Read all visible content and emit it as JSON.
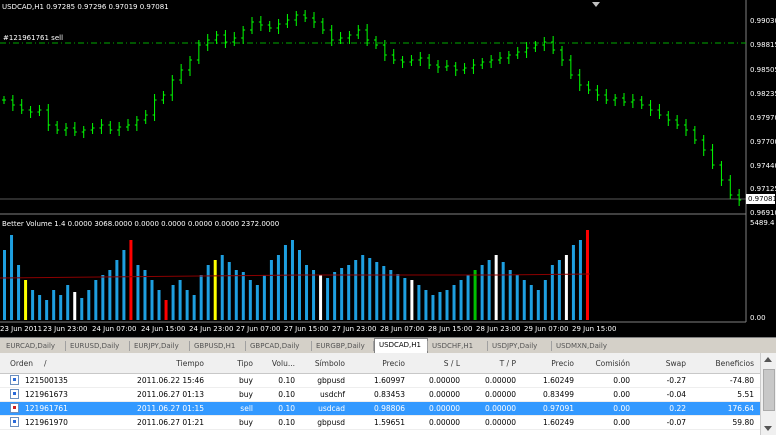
{
  "chart": {
    "symbol_line": "USDCAD,H1  0.97285 0.97296 0.97019 0.97081",
    "order_line_label": "#121961761 sell",
    "indicator_line": "Better Volume 1.4 0.0000 3068.0000 0.0000 0.0000 0.0000 0.0000 2372.0000",
    "current_price": "0.97081",
    "price_scale": [
      "0.99030",
      "0.98815",
      "0.98505",
      "0.98235",
      "0.97970",
      "0.97700",
      "0.97440",
      "0.97125",
      "0.96910"
    ],
    "volume_scale_top": "5489.4",
    "volume_scale_bottom": "0.00",
    "time_labels": [
      "23 Jun 2011",
      "23 Jun 23:00",
      "24 Jun 07:00",
      "24 Jun 15:00",
      "24 Jun 23:00",
      "27 Jun 07:00",
      "27 Jun 15:00",
      "27 Jun 23:00",
      "28 Jun 07:00",
      "28 Jun 15:00",
      "28 Jun 23:00",
      "29 Jun 07:00",
      "29 Jun 15:00"
    ],
    "colors": {
      "bull": "#00ff00",
      "bear": "#00ff00",
      "volume_default": "#1e9fe0",
      "volume_red": "#ff0000",
      "volume_white": "#ffffff",
      "volume_yellow": "#ffff00",
      "volume_green": "#00c000",
      "ma_line": "#8b0000",
      "order_line": "#00aa00"
    }
  },
  "tabs": [
    {
      "label": "EURCAD,Daily"
    },
    {
      "label": "EURUSD,Daily"
    },
    {
      "label": "EURJPY,Daily"
    },
    {
      "label": "GBPUSD,H1"
    },
    {
      "label": "GBPCAD,Daily"
    },
    {
      "label": "EURGBP,Daily"
    },
    {
      "label": "USDCAD,H1",
      "active": true
    },
    {
      "label": "USDCHF,H1"
    },
    {
      "label": "USDJPY,Daily"
    },
    {
      "label": "USDMXN,Daily"
    }
  ],
  "orders": {
    "headers": {
      "order": "Orden",
      "sort_mark": "/",
      "time": "Tiempo",
      "type": "Tipo",
      "volume": "Volu...",
      "symbol": "Símbolo",
      "price": "Precio",
      "sl": "S / L",
      "tp": "T / P",
      "cur_price": "Precio",
      "commission": "Comisión",
      "swap": "Swap",
      "profit": "Beneficios"
    },
    "rows": [
      {
        "order": "121500135",
        "time": "2011.06.22 15:46",
        "type": "buy",
        "volume": "0.10",
        "symbol": "gbpusd",
        "price": "1.60997",
        "sl": "0.00000",
        "tp": "0.00000",
        "cur_price": "1.60249",
        "commission": "0.00",
        "swap": "-0.27",
        "profit": "-74.80"
      },
      {
        "order": "121961673",
        "time": "2011.06.27 01:13",
        "type": "buy",
        "volume": "0.10",
        "symbol": "usdchf",
        "price": "0.83453",
        "sl": "0.00000",
        "tp": "0.00000",
        "cur_price": "0.83499",
        "commission": "0.00",
        "swap": "-0.04",
        "profit": "5.51"
      },
      {
        "order": "121961761",
        "time": "2011.06.27 01:15",
        "type": "sell",
        "volume": "0.10",
        "symbol": "usdcad",
        "price": "0.98806",
        "sl": "0.00000",
        "tp": "0.00000",
        "cur_price": "0.97091",
        "commission": "0.00",
        "swap": "0.22",
        "profit": "176.64",
        "selected": true
      },
      {
        "order": "121961970",
        "time": "2011.06.27 01:21",
        "type": "buy",
        "volume": "0.10",
        "symbol": "gbpusd",
        "price": "1.59651",
        "sl": "0.00000",
        "tp": "0.00000",
        "cur_price": "1.60249",
        "commission": "0.00",
        "swap": "-0.07",
        "profit": "59.80"
      }
    ]
  }
}
